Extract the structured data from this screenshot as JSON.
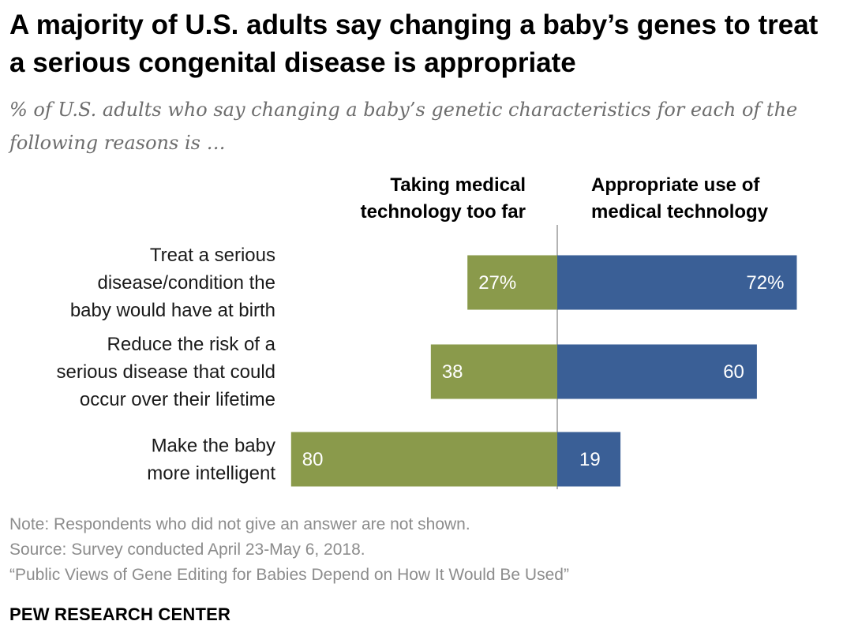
{
  "title": "A majority of U.S. adults say changing a baby’s genes to treat a serious congenital disease is appropriate",
  "subtitle": "% of U.S. adults who say changing a baby’s genetic characteristics for each of the following reasons is …",
  "chart_data": {
    "type": "bar",
    "orientation": "horizontal-diverging",
    "categories": [
      [
        "Treat a serious",
        "disease/condition the",
        "baby would have at birth"
      ],
      [
        "Reduce the risk of a",
        "serious disease that could",
        "occur over their lifetime"
      ],
      [
        "Make the baby",
        "more intelligent"
      ]
    ],
    "series": [
      {
        "name": "Taking medical technology too far",
        "header_lines": [
          "Taking medical",
          "technology too far"
        ],
        "values": [
          27,
          38,
          80
        ],
        "labels": [
          "27%",
          "38",
          "80"
        ],
        "color": "#8a9a4b",
        "side": "left"
      },
      {
        "name": "Appropriate use of medical technology",
        "header_lines": [
          "Appropriate use of",
          "medical technology"
        ],
        "values": [
          72,
          60,
          19
        ],
        "labels": [
          "72%",
          "60",
          "19"
        ],
        "color": "#3a5f96",
        "side": "right"
      }
    ]
  },
  "notes": {
    "note": "Note: Respondents who did not give an answer are not shown.",
    "source": "Source: Survey conducted April 23-May 6, 2018.",
    "report": "“Public Views of Gene Editing for Babies Depend on How It Would Be Used”"
  },
  "brand": "PEW RESEARCH CENTER"
}
